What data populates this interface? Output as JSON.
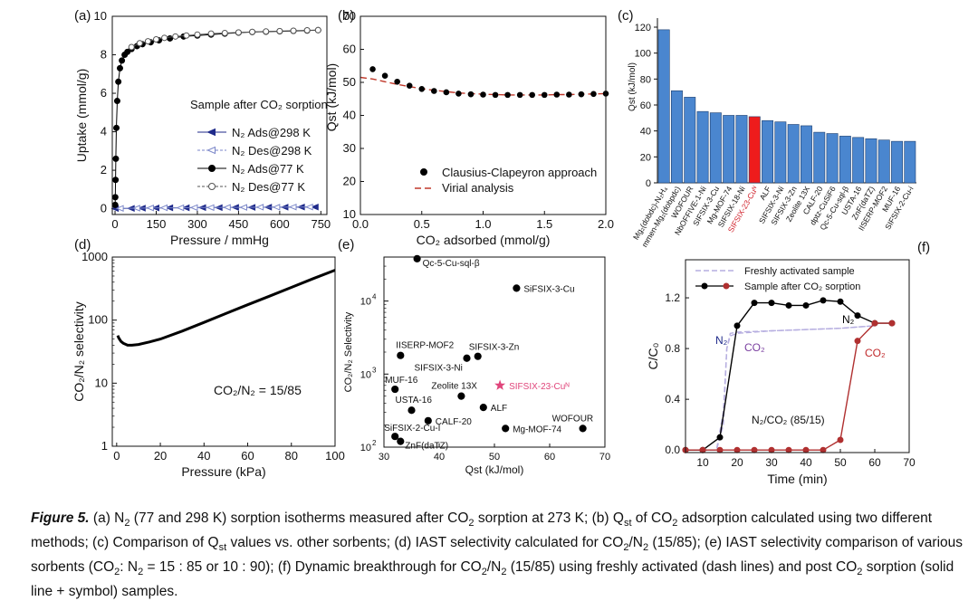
{
  "figure_label": "Figure 5.",
  "caption_parts": [
    {
      "t": " (a) N"
    },
    {
      "t": "2",
      "s": "sub"
    },
    {
      "t": " (77 and 298 K) sorption isotherms measured after CO"
    },
    {
      "t": "2",
      "s": "sub"
    },
    {
      "t": " sorption at 273 K; (b) Q"
    },
    {
      "t": "st",
      "s": "sub"
    },
    {
      "t": " of CO"
    },
    {
      "t": "2",
      "s": "sub"
    },
    {
      "t": " adsorption calculated using two different methods; (c) Comparison of Q"
    },
    {
      "t": "st",
      "s": "sub"
    },
    {
      "t": " values vs. other sorbents; (d) IAST selectivity calculated for CO"
    },
    {
      "t": "2",
      "s": "sub"
    },
    {
      "t": "/N"
    },
    {
      "t": "2",
      "s": "sub"
    },
    {
      "t": " (15/85); (e) IAST selectivity comparison of various sorbents (CO"
    },
    {
      "t": "2",
      "s": "sub"
    },
    {
      "t": ": N"
    },
    {
      "t": "2",
      "s": "sub"
    },
    {
      "t": " = 15 : 85 or 10 : 90); (f) Dynamic breakthrough for CO"
    },
    {
      "t": "2",
      "s": "sub"
    },
    {
      "t": "/N"
    },
    {
      "t": "2",
      "s": "sub"
    },
    {
      "t": " (15/85) using freshly activated (dash lines) and post CO"
    },
    {
      "t": "2",
      "s": "sub"
    },
    {
      "t": " sorption (solid line + symbol) samples."
    }
  ],
  "chart_data": [
    {
      "panel": "(a)",
      "type": "scatter",
      "xlabel": "Pressure / mmHg",
      "ylabel": "Uptake (mmol/g)",
      "xlim": [
        0,
        750
      ],
      "ylim": [
        0,
        10
      ],
      "xticks": [
        0,
        150,
        300,
        450,
        600,
        750
      ],
      "yticks": [
        0,
        2,
        4,
        6,
        8,
        10
      ],
      "annotation": "Sample after CO₂ sorption",
      "series": [
        {
          "name": "N₂ Ads@298 K",
          "color": "#1f2a8a",
          "marker": "triangle-left-filled",
          "x": [
            2,
            60,
            100,
            150,
            200,
            260,
            320,
            380,
            440,
            500,
            560,
            620,
            680,
            730
          ],
          "y": [
            0.01,
            0.02,
            0.03,
            0.04,
            0.05,
            0.05,
            0.06,
            0.06,
            0.07,
            0.07,
            0.08,
            0.08,
            0.09,
            0.09
          ]
        },
        {
          "name": "N₂ Des@298 K",
          "color": "#7a86c8",
          "marker": "triangle-left-open",
          "x": [
            20,
            80,
            130,
            180,
            240,
            290,
            350,
            410,
            470,
            530,
            590,
            650,
            710
          ],
          "y": [
            0.02,
            0.03,
            0.04,
            0.05,
            0.05,
            0.06,
            0.06,
            0.07,
            0.07,
            0.08,
            0.08,
            0.09,
            0.09
          ]
        },
        {
          "name": "N₂ Ads@77 K",
          "color": "#000000",
          "marker": "circle-filled",
          "x": [
            0.5,
            1,
            2,
            3,
            5,
            8,
            12,
            18,
            25,
            35,
            45,
            60,
            80,
            100,
            130,
            160,
            200,
            250,
            300,
            350,
            400,
            450,
            500,
            550,
            600,
            650,
            700,
            740
          ],
          "y": [
            0.2,
            0.6,
            1.5,
            2.6,
            4.2,
            5.6,
            6.6,
            7.3,
            7.7,
            8.0,
            8.15,
            8.3,
            8.45,
            8.55,
            8.65,
            8.75,
            8.85,
            8.95,
            9.0,
            9.05,
            9.1,
            9.15,
            9.18,
            9.2,
            9.22,
            9.24,
            9.26,
            9.28
          ]
        },
        {
          "name": "N₂ Des@77 K",
          "color": "#555555",
          "marker": "circle-open",
          "x": [
            60,
            90,
            120,
            150,
            180,
            220,
            260,
            300,
            350,
            400,
            450,
            500,
            550,
            600,
            650,
            700,
            740
          ],
          "y": [
            8.4,
            8.6,
            8.7,
            8.8,
            8.88,
            8.95,
            9.0,
            9.05,
            9.1,
            9.13,
            9.16,
            9.19,
            9.21,
            9.23,
            9.25,
            9.27,
            9.28
          ]
        }
      ]
    },
    {
      "panel": "(b)",
      "type": "scatter",
      "xlabel": "CO₂ adsorbed (mmol/g)",
      "ylabel": "Qst (kJ/mol)",
      "xlim": [
        0,
        2.0
      ],
      "ylim": [
        10,
        70
      ],
      "xticks": [
        0.0,
        0.5,
        1.0,
        1.5,
        2.0
      ],
      "yticks": [
        10,
        20,
        30,
        40,
        50,
        60,
        70
      ],
      "series": [
        {
          "name": "Clausius-Clapeyron approach",
          "color": "#000000",
          "marker": "circle-filled",
          "x": [
            0.1,
            0.2,
            0.3,
            0.4,
            0.5,
            0.6,
            0.7,
            0.8,
            0.9,
            1.0,
            1.1,
            1.2,
            1.3,
            1.4,
            1.5,
            1.6,
            1.7,
            1.8,
            1.9,
            2.0
          ],
          "y": [
            54,
            52,
            50.2,
            49,
            48,
            47.4,
            47,
            46.6,
            46.4,
            46.3,
            46.2,
            46.2,
            46.2,
            46.2,
            46.2,
            46.3,
            46.3,
            46.4,
            46.5,
            46.6
          ]
        },
        {
          "name": "Virial analysis",
          "color": "#c0392b",
          "style": "dash",
          "x": [
            0,
            0.1,
            0.2,
            0.3,
            0.4,
            0.5,
            0.6,
            0.7,
            0.8,
            0.9,
            1.0,
            1.1,
            1.2,
            1.3,
            1.4,
            1.5,
            1.6,
            1.7,
            1.8,
            1.9,
            2.0
          ],
          "y": [
            51.5,
            51,
            50.2,
            49.4,
            48.7,
            48.1,
            47.6,
            47.2,
            46.8,
            46.6,
            46.4,
            46.3,
            46.2,
            46.2,
            46.2,
            46.2,
            46.3,
            46.3,
            46.4,
            46.5,
            46.6
          ]
        }
      ]
    },
    {
      "panel": "(c)",
      "type": "bar",
      "ylabel": "Qst (kJ/mol)",
      "ylim": [
        0,
        120
      ],
      "yticks": [
        0,
        20,
        40,
        60,
        80,
        100,
        120
      ],
      "categories": [
        "Mg₂(dobdc)-N₂H₄",
        "mmen-Mg₂(dobpdc)",
        "WOFOUR",
        "NbOFFIVE-1-Ni",
        "SIFSIX-3-Cu",
        "Mg-MOF-74",
        "SIFSIX-18-Ni",
        "SIFSIX-23-Cuᴺ",
        "ALF",
        "SIFSIX-3-Ni",
        "SIFSIX-3-Zn",
        "Zeolite 13X",
        "CALF-20",
        "dptz-CuSiF6",
        "Qc-5-Cu-sql-β",
        "USTA-16",
        "ZnF(daTZ)",
        "IISERP-MOF2",
        "MUF-16",
        "SIFSIX-2-Cu-i"
      ],
      "values": [
        118,
        71,
        66,
        55,
        54,
        52,
        52,
        51,
        48,
        47,
        45,
        44,
        39,
        38,
        36,
        35,
        34,
        33,
        32,
        32
      ],
      "bar_color": "#4a86cf",
      "highlight_color": "#ee1c1c",
      "highlight_index": 7,
      "highlight_label_color": "#d0202a"
    },
    {
      "panel": "(d)",
      "type": "line",
      "xlabel": "Pressure (kPa)",
      "ylabel": "CO₂/N₂ selectivity",
      "xlim": [
        0,
        100
      ],
      "ylim": [
        1,
        1000
      ],
      "yscale": "log",
      "xticks": [
        0,
        20,
        40,
        60,
        80,
        100
      ],
      "xticklabels": [
        "0",
        "20",
        "40",
        "60",
        "80",
        "100"
      ],
      "yticks": [
        1,
        10,
        100,
        1000
      ],
      "annotation": "CO₂/N₂ = 15/85",
      "series": [
        {
          "name": "",
          "color": "#000000",
          "x": [
            0.5,
            1,
            2,
            3,
            5,
            7,
            10,
            15,
            20,
            30,
            40,
            50,
            60,
            70,
            80,
            90,
            100
          ],
          "y": [
            57,
            52,
            46,
            43,
            40,
            40,
            41,
            45,
            50,
            67,
            92,
            127,
            175,
            240,
            330,
            455,
            620
          ]
        }
      ]
    },
    {
      "panel": "(e)",
      "type": "scatter",
      "xlabel": "Qst (kJ/mol)",
      "ylabel": "CO₂/N₂ Selectivity",
      "xlim": [
        30,
        70
      ],
      "ylim": [
        100,
        40000
      ],
      "yscale": "log",
      "xticks": [
        30,
        40,
        50,
        60,
        70
      ],
      "yticks": [
        100,
        1000,
        10000
      ],
      "points": [
        {
          "label": "Qc-5-Cu-sql-β",
          "x": 36,
          "y": 38000,
          "color": "#000000"
        },
        {
          "label": "SiFSIX-3-Cu",
          "x": 54,
          "y": 15000,
          "color": "#000000"
        },
        {
          "label": "IISERP-MOF2",
          "x": 33,
          "y": 1800,
          "color": "#000000"
        },
        {
          "label": "SIFSIX-3-Zn",
          "x": 47,
          "y": 1750,
          "color": "#000000"
        },
        {
          "label": "SIFSIX-3-Ni",
          "x": 45,
          "y": 1650,
          "color": "#000000"
        },
        {
          "label": "MUF-16",
          "x": 32,
          "y": 620,
          "color": "#000000"
        },
        {
          "label": "SIFSIX-23-Cuᴺ",
          "x": 51,
          "y": 700,
          "color": "#e0457b",
          "marker": "star"
        },
        {
          "label": "Zeolite 13X",
          "x": 44,
          "y": 500,
          "color": "#000000"
        },
        {
          "label": "USTA-16",
          "x": 35,
          "y": 320,
          "color": "#000000"
        },
        {
          "label": "ALF",
          "x": 48,
          "y": 350,
          "color": "#000000"
        },
        {
          "label": "CALF-20",
          "x": 38,
          "y": 230,
          "color": "#000000"
        },
        {
          "label": "WOFOUR",
          "x": 66,
          "y": 180,
          "color": "#000000"
        },
        {
          "label": "Mg-MOF-74",
          "x": 52,
          "y": 180,
          "color": "#000000"
        },
        {
          "label": "SiFSIX-2-Cu-I",
          "x": 32,
          "y": 140,
          "color": "#000000"
        },
        {
          "label": "ZnF(daTZ)",
          "x": 33,
          "y": 120,
          "color": "#000000"
        }
      ]
    },
    {
      "panel": "(f)",
      "type": "line",
      "xlabel": "Time (min)",
      "ylabel": "C/C₀",
      "xlim": [
        5,
        70
      ],
      "ylim": [
        0,
        1.4
      ],
      "xticks": [
        10,
        20,
        30,
        40,
        50,
        60,
        70
      ],
      "yticks": [
        0.0,
        0.4,
        0.8,
        1.2
      ],
      "annotation": "N₂/CO₂ (85/15)",
      "legend": [
        "Freshly activated sample",
        "Sample after CO₂ sorption"
      ],
      "curve_labels": [
        {
          "text": "N₂",
          "color": "#1f2a8a"
        },
        {
          "text": "CO₂",
          "color": "#7a3fa0"
        },
        {
          "text": "N₂",
          "color": "#000000"
        },
        {
          "text": "CO₂",
          "color": "#c0292b"
        }
      ],
      "series": [
        {
          "name": "N₂ (fresh)",
          "color": "#b6aee0",
          "style": "dash",
          "x": [
            5,
            14,
            16,
            17,
            18,
            20,
            30,
            40,
            50,
            60
          ],
          "y": [
            0,
            0,
            0.3,
            0.8,
            0.92,
            0.93,
            0.94,
            0.95,
            0.96,
            0.98
          ]
        },
        {
          "name": "CO₂ (fresh)",
          "color": "#b6aee0",
          "style": "dash",
          "x": [
            5,
            14,
            16,
            17,
            18,
            20,
            30,
            40,
            50,
            60
          ],
          "y": [
            0,
            0,
            0.2,
            0.8,
            0.9,
            0.92,
            0.94,
            0.95,
            0.96,
            0.98
          ]
        },
        {
          "name": "N₂ (post)",
          "color": "#000000",
          "marker": "circle-filled",
          "x": [
            5,
            10,
            15,
            20,
            25,
            30,
            35,
            40,
            45,
            50,
            55,
            60,
            65
          ],
          "y": [
            0,
            0,
            0.1,
            0.98,
            1.16,
            1.16,
            1.14,
            1.14,
            1.18,
            1.17,
            1.06,
            1.0,
            1.0
          ]
        },
        {
          "name": "CO₂ (post)",
          "color": "#b03030",
          "marker": "circle-filled",
          "x": [
            5,
            10,
            15,
            20,
            25,
            30,
            35,
            40,
            45,
            50,
            55,
            60,
            65
          ],
          "y": [
            0,
            0,
            0,
            0,
            0,
            0,
            0,
            0,
            0,
            0.08,
            0.86,
            1.0,
            1.0
          ]
        }
      ]
    }
  ]
}
